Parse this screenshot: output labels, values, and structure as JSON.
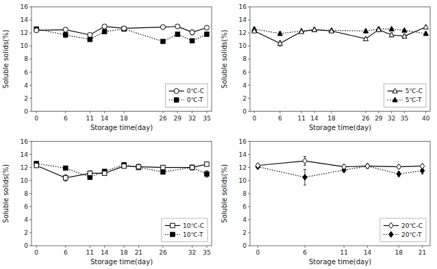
{
  "chart_data": [
    {
      "type": "line",
      "xlabel": "Storage time(day)",
      "ylabel": "Soluble solids(%)",
      "x": [
        0,
        6,
        11,
        14,
        18,
        26,
        29,
        32,
        35
      ],
      "xlim": [
        -1,
        36
      ],
      "xticks": [
        0,
        6,
        11,
        14,
        18,
        26,
        29,
        32,
        35
      ],
      "ylim": [
        0,
        16
      ],
      "yticks": [
        0,
        2,
        4,
        6,
        8,
        10,
        12,
        14,
        16
      ],
      "grid": false,
      "legend": "lower right",
      "series": [
        {
          "name": "0℃-C",
          "color": "#000000",
          "marker": "open-circle",
          "line_style": "solid",
          "values": [
            12.4,
            12.5,
            11.7,
            13.0,
            12.7,
            12.9,
            13.0,
            12.1,
            12.8
          ],
          "errors": [
            0.25,
            0.2,
            0.2,
            0.25,
            0.2,
            0.3,
            0.3,
            0.4,
            0.3
          ]
        },
        {
          "name": "0℃-T",
          "color": "#000000",
          "marker": "filled-square",
          "line_style": "dotted",
          "values": [
            12.6,
            11.7,
            11.0,
            12.2,
            12.6,
            10.7,
            11.8,
            10.8,
            11.8
          ],
          "errors": [
            0.25,
            0.4,
            0.3,
            0.25,
            0.2,
            0.2,
            0.2,
            0.2,
            0.25
          ]
        }
      ]
    },
    {
      "type": "line",
      "xlabel": "Storage time(day)",
      "ylabel": "Soluble solids(%)",
      "x": [
        0,
        6,
        11,
        14,
        18,
        26,
        29,
        32,
        35,
        40
      ],
      "xlim": [
        -1,
        41
      ],
      "xticks": [
        0,
        6,
        11,
        14,
        18,
        26,
        29,
        32,
        35,
        40
      ],
      "ylim": [
        0,
        16
      ],
      "yticks": [
        0,
        2,
        4,
        6,
        8,
        10,
        12,
        14,
        16
      ],
      "grid": false,
      "legend": "lower right",
      "series": [
        {
          "name": "5℃-C",
          "color": "#000000",
          "marker": "open-triangle",
          "line_style": "solid",
          "values": [
            12.3,
            10.4,
            12.2,
            12.5,
            12.3,
            11.1,
            12.5,
            11.7,
            11.5,
            12.9
          ],
          "errors": [
            0.25,
            0.4,
            0.25,
            0.25,
            0.2,
            0.2,
            0.3,
            0.3,
            0.3,
            0.25
          ]
        },
        {
          "name": "5℃-T",
          "color": "#000000",
          "marker": "filled-triangle",
          "line_style": "dotted",
          "values": [
            12.6,
            11.9,
            12.3,
            12.5,
            12.4,
            12.3,
            12.6,
            12.6,
            12.4,
            11.9
          ],
          "errors": [
            0.25,
            0.25,
            0.2,
            0.25,
            0.2,
            0.2,
            0.25,
            0.2,
            0.2,
            0.25
          ]
        }
      ]
    },
    {
      "type": "line",
      "xlabel": "Storage time(day)",
      "ylabel": "Soluble solids(%)",
      "x": [
        0,
        6,
        11,
        14,
        18,
        21,
        26,
        32,
        35
      ],
      "xlim": [
        -1,
        36
      ],
      "xticks": [
        0,
        6,
        11,
        14,
        18,
        21,
        26,
        32,
        35
      ],
      "ylim": [
        0,
        16
      ],
      "yticks": [
        0,
        2,
        4,
        6,
        8,
        10,
        12,
        14,
        16
      ],
      "grid": false,
      "legend": "lower right",
      "series": [
        {
          "name": "10℃-C",
          "color": "#000000",
          "marker": "open-square",
          "line_style": "solid",
          "values": [
            12.3,
            10.4,
            11.1,
            11.1,
            12.2,
            12.1,
            12.0,
            12.0,
            12.5
          ],
          "errors": [
            0.25,
            0.5,
            0.4,
            0.3,
            0.3,
            0.4,
            0.3,
            0.4,
            0.3
          ]
        },
        {
          "name": "10℃-T",
          "color": "#000000",
          "marker": "filled-square",
          "line_style": "dotted",
          "values": [
            12.6,
            11.9,
            10.5,
            11.4,
            12.4,
            12.0,
            11.3,
            12.0,
            11.0
          ],
          "errors": [
            0.35,
            0.3,
            0.3,
            0.3,
            0.3,
            0.3,
            0.2,
            0.3,
            0.5
          ]
        }
      ]
    },
    {
      "type": "line",
      "xlabel": "Storage time(day)",
      "ylabel": "Soluble solids(%)",
      "x": [
        0,
        6,
        11,
        14,
        18,
        21
      ],
      "xlim": [
        -1,
        22
      ],
      "xticks": [
        0,
        6,
        11,
        14,
        18,
        21
      ],
      "ylim": [
        0,
        16
      ],
      "yticks": [
        0,
        2,
        4,
        6,
        8,
        10,
        12,
        14,
        16
      ],
      "grid": false,
      "legend": "lower right",
      "series": [
        {
          "name": "20℃-C",
          "color": "#000000",
          "marker": "open-diamond",
          "line_style": "solid",
          "values": [
            12.3,
            13.0,
            12.1,
            12.2,
            12.1,
            12.2
          ],
          "errors": [
            0.25,
            0.7,
            0.3,
            0.3,
            0.25,
            0.25
          ]
        },
        {
          "name": "20℃-T",
          "color": "#000000",
          "marker": "filled-diamond",
          "line_style": "dotted",
          "values": [
            12.1,
            10.5,
            11.6,
            12.2,
            11.0,
            11.5
          ],
          "errors": [
            0.25,
            1.2,
            0.3,
            0.3,
            0.4,
            0.5
          ]
        }
      ]
    }
  ]
}
